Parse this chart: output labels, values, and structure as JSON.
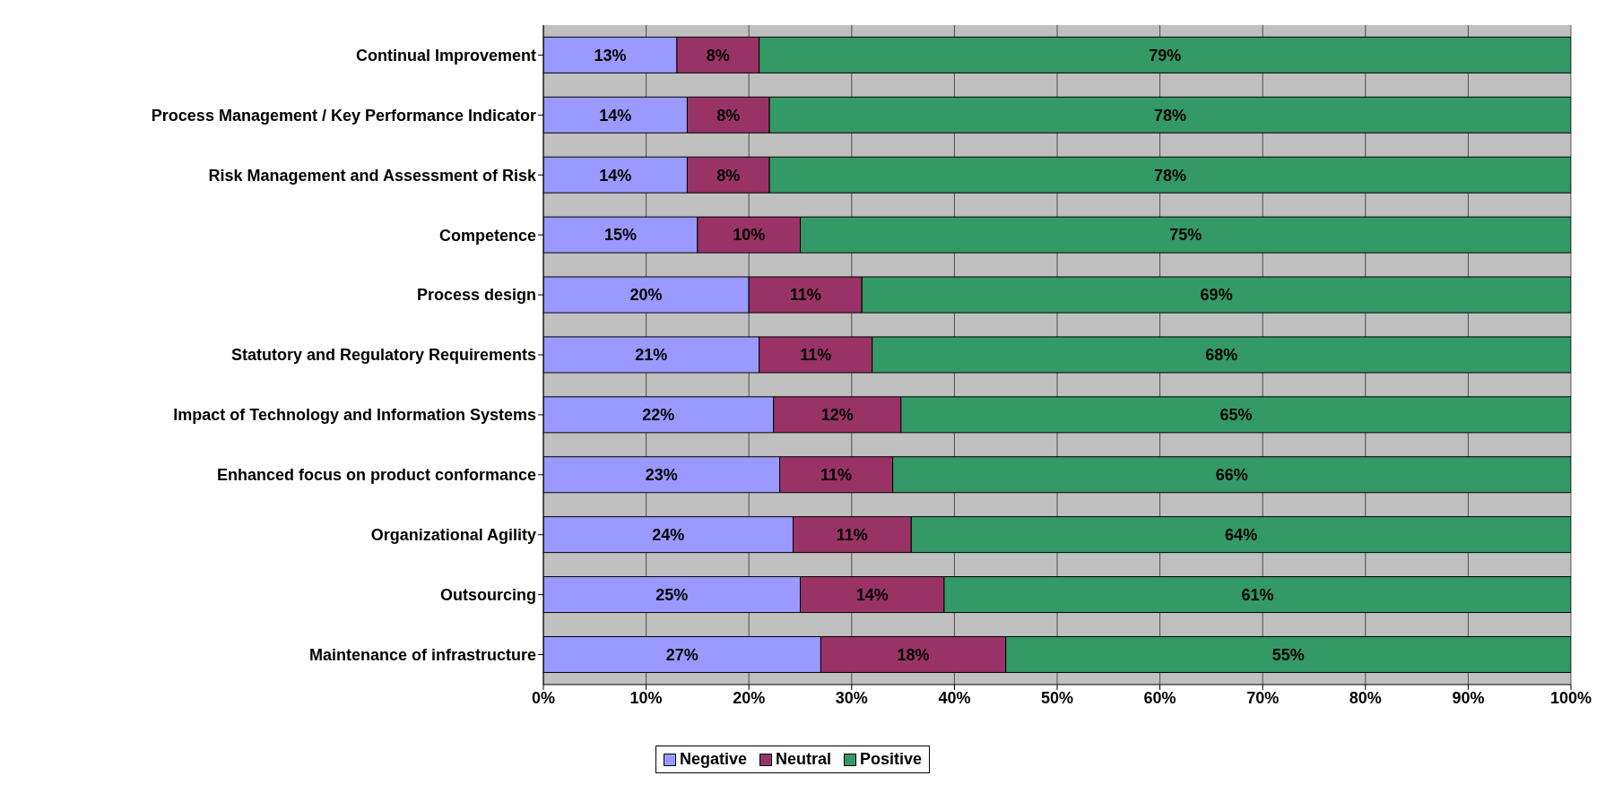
{
  "chart_data": {
    "type": "bar",
    "orientation": "horizontal",
    "stacked": true,
    "categories": [
      "Continual Improvement",
      "Process Management / Key Performance Indicator",
      "Risk Management and Assessment of Risk",
      "Competence",
      "Process design",
      "Statutory and Regulatory Requirements",
      "Impact of Technology and Information Systems",
      "Enhanced focus on product conformance",
      "Organizational Agility",
      "Outsourcing",
      "Maintenance of infrastructure"
    ],
    "series": [
      {
        "name": "Negative",
        "color": "#9999ff",
        "values": [
          13,
          14,
          14,
          15,
          20,
          21,
          22.4,
          23,
          24.3,
          25,
          27
        ],
        "value_labels": [
          "13%",
          "14%",
          "14%",
          "15%",
          "20%",
          "21%",
          "22%",
          "23%",
          "24%",
          "25%",
          "27%"
        ]
      },
      {
        "name": "Neutral",
        "color": "#993366",
        "values": [
          8,
          8,
          8,
          10,
          11,
          11,
          12.4,
          11,
          11.5,
          14,
          18
        ],
        "value_labels": [
          "8%",
          "8%",
          "8%",
          "10%",
          "11%",
          "11%",
          "12%",
          "11%",
          "11%",
          "14%",
          "18%"
        ]
      },
      {
        "name": "Positive",
        "color": "#339966",
        "values": [
          79,
          78,
          78,
          75,
          69,
          68,
          65.2,
          66,
          64.2,
          61,
          55
        ],
        "value_labels": [
          "79%",
          "78%",
          "78%",
          "75%",
          "69%",
          "68%",
          "65%",
          "66%",
          "64%",
          "61%",
          "55%"
        ]
      }
    ],
    "xlim": [
      0,
      100
    ],
    "xticks": [
      {
        "value": 0,
        "label": "0%"
      },
      {
        "value": 10,
        "label": "10%"
      },
      {
        "value": 20,
        "label": "20%"
      },
      {
        "value": 30,
        "label": "30%"
      },
      {
        "value": 40,
        "label": "40%"
      },
      {
        "value": 50,
        "label": "50%"
      },
      {
        "value": 60,
        "label": "60%"
      },
      {
        "value": 70,
        "label": "70%"
      },
      {
        "value": 80,
        "label": "80%"
      },
      {
        "value": 90,
        "label": "90%"
      },
      {
        "value": 100,
        "label": "100%"
      }
    ],
    "grid": "x",
    "legend": "bottom"
  }
}
